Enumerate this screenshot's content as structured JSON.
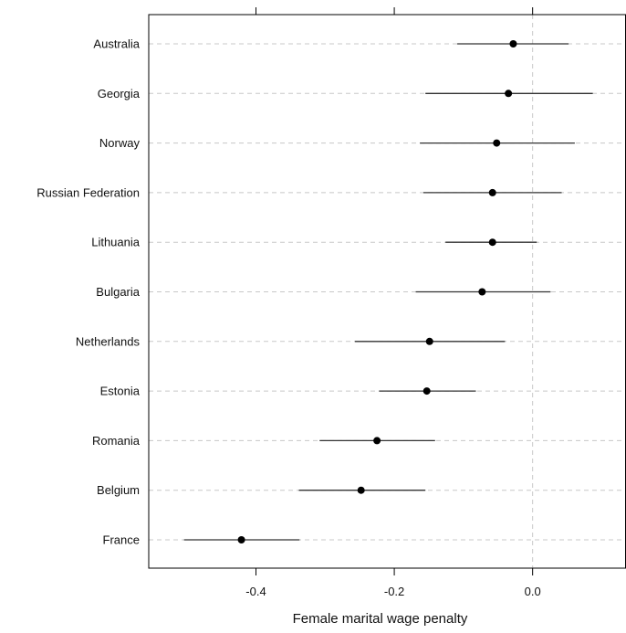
{
  "chart_data": {
    "type": "scatter",
    "style": "dot-and-whisker",
    "xlabel": "Female marital wage penalty",
    "ylabel": "",
    "xlim": [
      -0.555,
      0.135
    ],
    "x_ticks": [
      -0.4,
      -0.2,
      0.0
    ],
    "x_tick_labels": [
      "-0.4",
      "-0.2",
      "0.0"
    ],
    "reference_line": 0.0,
    "grid": "dashed horizontal per category",
    "categories": [
      "Australia",
      "Georgia",
      "Norway",
      "Russian Federation",
      "Lithuania",
      "Bulgaria",
      "Netherlands",
      "Estonia",
      "Romania",
      "Belgium",
      "France"
    ],
    "estimates": [
      -0.028,
      -0.035,
      -0.052,
      -0.058,
      -0.058,
      -0.073,
      -0.149,
      -0.153,
      -0.225,
      -0.248,
      -0.421
    ],
    "ci_low": [
      -0.109,
      -0.155,
      -0.163,
      -0.158,
      -0.126,
      -0.169,
      -0.257,
      -0.222,
      -0.308,
      -0.338,
      -0.504
    ],
    "ci_high": [
      0.052,
      0.087,
      0.061,
      0.042,
      0.006,
      0.026,
      -0.04,
      -0.082,
      -0.141,
      -0.155,
      -0.337
    ],
    "colors": {
      "point": "#000000",
      "interval": "#333333",
      "grid": "#c8c8c8",
      "axis": "#000000"
    }
  }
}
